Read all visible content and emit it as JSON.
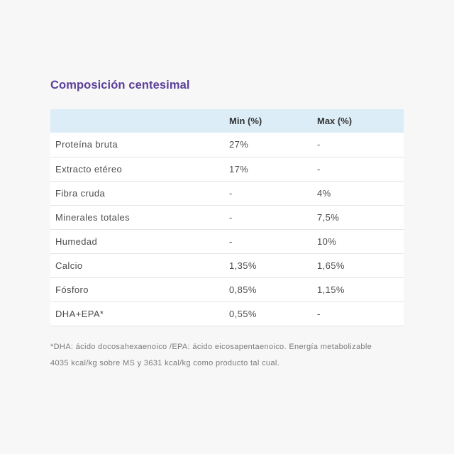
{
  "section": {
    "title": "Composición centesimal"
  },
  "table": {
    "headers": [
      "",
      "Min (%)",
      "Max (%)"
    ],
    "rows": [
      {
        "name": "Proteína bruta",
        "min": "27%",
        "max": "-"
      },
      {
        "name": "Extracto etéreo",
        "min": "17%",
        "max": "-"
      },
      {
        "name": "Fibra cruda",
        "min": "-",
        "max": "4%"
      },
      {
        "name": "Minerales totales",
        "min": "-",
        "max": "7,5%"
      },
      {
        "name": "Humedad",
        "min": "-",
        "max": "10%"
      },
      {
        "name": "Calcio",
        "min": "1,35%",
        "max": "1,65%"
      },
      {
        "name": "Fósforo",
        "min": "0,85%",
        "max": "1,15%"
      },
      {
        "name": "DHA+EPA*",
        "min": "0,55%",
        "max": "-"
      }
    ]
  },
  "footnote": "*DHA: ácido docosahexaenoico /EPA: ácido eicosapentaenoico. Energía metabolizable 4035 kcal/kg sobre MS y 3631 kcal/kg como producto tal cual."
}
